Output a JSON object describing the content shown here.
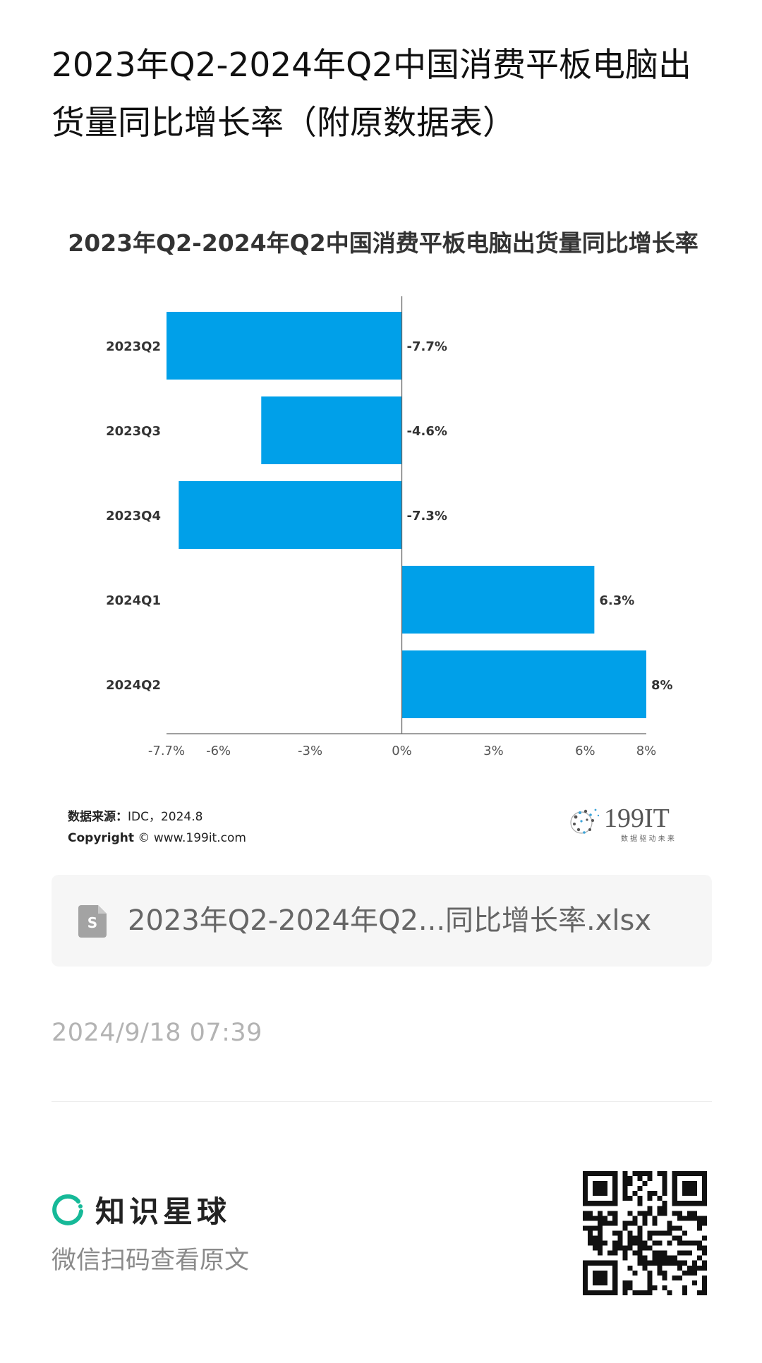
{
  "page": {
    "title": "2023年Q2-2024年Q2中国消费平板电脑出货量同比增长率（附原数据表）"
  },
  "chart_data": {
    "type": "bar",
    "orientation": "horizontal",
    "title": "2023年Q2-2024年Q2中国消费平板电脑出货量同比增长率",
    "categories": [
      "2023Q2",
      "2023Q3",
      "2023Q4",
      "2024Q1",
      "2024Q2"
    ],
    "values": [
      -7.7,
      -4.6,
      -7.3,
      6.3,
      8
    ],
    "value_labels": [
      "-7.7%",
      "-4.6%",
      "-7.3%",
      "6.3%",
      "8%"
    ],
    "x_ticks": [
      -7.7,
      -6,
      -3,
      0,
      3,
      6,
      8
    ],
    "x_tick_labels": [
      "-7.7%",
      "-6%",
      "-3%",
      "0%",
      "3%",
      "6%",
      "8%"
    ],
    "xlim": [
      -7.7,
      8
    ],
    "bar_color": "#00a0e9",
    "grid": false,
    "legend": "none"
  },
  "source": {
    "label": "数据来源：",
    "value": "IDC，2024.8",
    "copyright_label": "Copyright",
    "copyright_symbol": "©",
    "site": "www.199it.com"
  },
  "logo": {
    "name": "199IT",
    "tagline": "数 据 驱 动 未 来"
  },
  "file": {
    "name": "2023年Q2-2024年Q2...同比增长率.xlsx",
    "icon": "spreadsheet-file-icon",
    "icon_letter": "S"
  },
  "meta": {
    "timestamp": "2024/9/18 07:39"
  },
  "footer": {
    "brand_name": "知识星球",
    "brand_color": "#16b998",
    "subtitle": "微信扫码查看原文"
  }
}
